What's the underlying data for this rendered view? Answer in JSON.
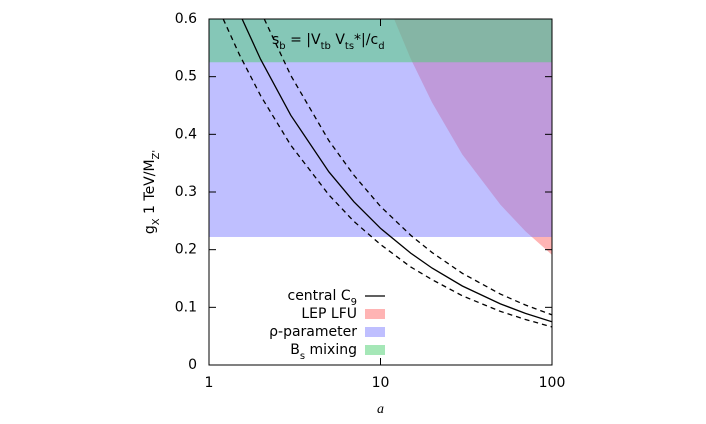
{
  "chart_data": {
    "type": "line",
    "xlabel": "a",
    "ylabel": [
      "g",
      "X",
      " 1 TeV/M",
      "Z'"
    ],
    "annotation": [
      "s",
      "b",
      " = |V",
      "tb",
      " V",
      "ts",
      "*|/c",
      "d"
    ],
    "xscale": "log",
    "xlim": [
      1,
      100
    ],
    "xticks": [
      1,
      10,
      100
    ],
    "ylim": [
      0,
      0.6
    ],
    "yticks": [
      0,
      0.1,
      0.2,
      0.3,
      0.4,
      0.5,
      0.6
    ],
    "series": [
      {
        "name": [
          "central C",
          "9"
        ],
        "kind": "line",
        "dash": false,
        "color": "#000000",
        "x": [
          1.56,
          2,
          3,
          5,
          7,
          10,
          15,
          20,
          30,
          50,
          70,
          100
        ],
        "values": [
          0.6,
          0.53,
          0.433,
          0.335,
          0.283,
          0.237,
          0.194,
          0.168,
          0.137,
          0.106,
          0.0896,
          0.075
        ]
      },
      {
        "name": [
          "LEP LFU"
        ],
        "kind": "region",
        "color": "#ff6a6a",
        "x": [
          12,
          15,
          20,
          30,
          50,
          70,
          100
        ],
        "values": [
          0.6,
          0.531,
          0.455,
          0.365,
          0.278,
          0.232,
          0.191
        ]
      },
      {
        "name": [
          "ρ-parameter"
        ],
        "kind": "band",
        "color": "#7f7fff",
        "lower": 0.222
      },
      {
        "name": [
          "B",
          "s",
          " mixing"
        ],
        "kind": "band",
        "color": "#4ccf70",
        "lower": 0.525
      },
      {
        "kind": "line",
        "dash": true,
        "color": "#000000",
        "x": [
          2.1,
          3,
          5,
          7,
          10,
          15,
          20,
          30,
          50,
          70,
          100
        ],
        "values": [
          0.6,
          0.502,
          0.389,
          0.329,
          0.275,
          0.225,
          0.195,
          0.159,
          0.123,
          0.104,
          0.087
        ]
      },
      {
        "kind": "line",
        "dash": true,
        "color": "#000000",
        "x": [
          1.21,
          1.5,
          2,
          3,
          5,
          7,
          10,
          15,
          20,
          30,
          50,
          70,
          100
        ],
        "values": [
          0.6,
          0.539,
          0.467,
          0.381,
          0.295,
          0.249,
          0.209,
          0.17,
          0.148,
          0.12,
          0.093,
          0.079,
          0.066
        ]
      }
    ]
  }
}
